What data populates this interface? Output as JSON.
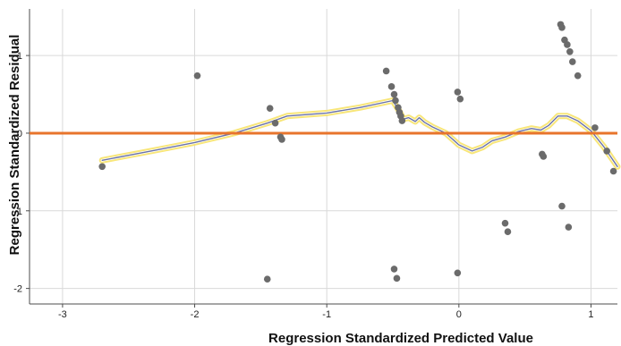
{
  "chart_data": {
    "type": "scatter",
    "title": "",
    "xlabel": "Regression Standardized Predicted Value",
    "ylabel": "Regression Standardized Residual",
    "xlim": [
      -3.25,
      1.2
    ],
    "ylim": [
      -2.2,
      1.6
    ],
    "xticks": [
      -3,
      -2,
      -1,
      0,
      1
    ],
    "yticks": [
      -2,
      -1,
      0,
      1
    ],
    "xtick_labels": [
      "-3",
      "-2",
      "-1",
      "0",
      "1"
    ],
    "ytick_labels": [
      "-2",
      "-1",
      "0",
      "1"
    ],
    "grid": true,
    "points": [
      {
        "x": -2.7,
        "y": -0.43
      },
      {
        "x": -1.98,
        "y": 0.74
      },
      {
        "x": -1.43,
        "y": 0.32
      },
      {
        "x": -1.39,
        "y": 0.13
      },
      {
        "x": -1.35,
        "y": -0.05
      },
      {
        "x": -1.34,
        "y": -0.08
      },
      {
        "x": -1.45,
        "y": -1.88
      },
      {
        "x": -0.55,
        "y": 0.8
      },
      {
        "x": -0.51,
        "y": 0.6
      },
      {
        "x": -0.49,
        "y": 0.5
      },
      {
        "x": -0.48,
        "y": 0.42
      },
      {
        "x": -0.46,
        "y": 0.33
      },
      {
        "x": -0.45,
        "y": 0.27
      },
      {
        "x": -0.44,
        "y": 0.22
      },
      {
        "x": -0.43,
        "y": 0.16
      },
      {
        "x": -0.49,
        "y": -1.75
      },
      {
        "x": -0.47,
        "y": -1.87
      },
      {
        "x": -0.01,
        "y": 0.53
      },
      {
        "x": 0.01,
        "y": 0.44
      },
      {
        "x": -0.01,
        "y": -1.8
      },
      {
        "x": 0.35,
        "y": -1.16
      },
      {
        "x": 0.37,
        "y": -1.27
      },
      {
        "x": 0.63,
        "y": -0.27
      },
      {
        "x": 0.64,
        "y": -0.3
      },
      {
        "x": 0.77,
        "y": 1.4
      },
      {
        "x": 0.78,
        "y": 1.36
      },
      {
        "x": 0.8,
        "y": 1.2
      },
      {
        "x": 0.82,
        "y": 1.14
      },
      {
        "x": 0.84,
        "y": 1.05
      },
      {
        "x": 0.86,
        "y": 0.92
      },
      {
        "x": 0.9,
        "y": 0.74
      },
      {
        "x": 0.78,
        "y": -0.94
      },
      {
        "x": 0.83,
        "y": -1.21
      },
      {
        "x": 1.03,
        "y": 0.07
      },
      {
        "x": 1.12,
        "y": -0.23
      },
      {
        "x": 1.17,
        "y": -0.49
      }
    ],
    "reference_line": {
      "y": 0,
      "color": "#e8742c"
    },
    "fit_line": {
      "points": [
        [
          -2.7,
          -0.35
        ],
        [
          -2.3,
          -0.22
        ],
        [
          -2.0,
          -0.12
        ],
        [
          -1.7,
          0.0
        ],
        [
          -1.45,
          0.13
        ],
        [
          -1.3,
          0.22
        ],
        [
          -1.0,
          0.26
        ],
        [
          -0.75,
          0.33
        ],
        [
          -0.5,
          0.42
        ],
        [
          -0.45,
          0.28
        ],
        [
          -0.42,
          0.18
        ],
        [
          -0.38,
          0.2
        ],
        [
          -0.33,
          0.15
        ],
        [
          -0.3,
          0.2
        ],
        [
          -0.26,
          0.14
        ],
        [
          -0.2,
          0.08
        ],
        [
          -0.1,
          0.0
        ],
        [
          0.0,
          -0.15
        ],
        [
          0.1,
          -0.23
        ],
        [
          0.18,
          -0.18
        ],
        [
          0.25,
          -0.1
        ],
        [
          0.35,
          -0.05
        ],
        [
          0.45,
          0.02
        ],
        [
          0.55,
          0.06
        ],
        [
          0.62,
          0.04
        ],
        [
          0.68,
          0.1
        ],
        [
          0.75,
          0.22
        ],
        [
          0.82,
          0.22
        ],
        [
          0.9,
          0.16
        ],
        [
          1.0,
          0.03
        ],
        [
          1.1,
          -0.18
        ],
        [
          1.2,
          -0.43
        ]
      ],
      "line_color": "#6b73a8",
      "glow_color": "#f7e36a"
    },
    "point_color": "#6b6b6b"
  }
}
